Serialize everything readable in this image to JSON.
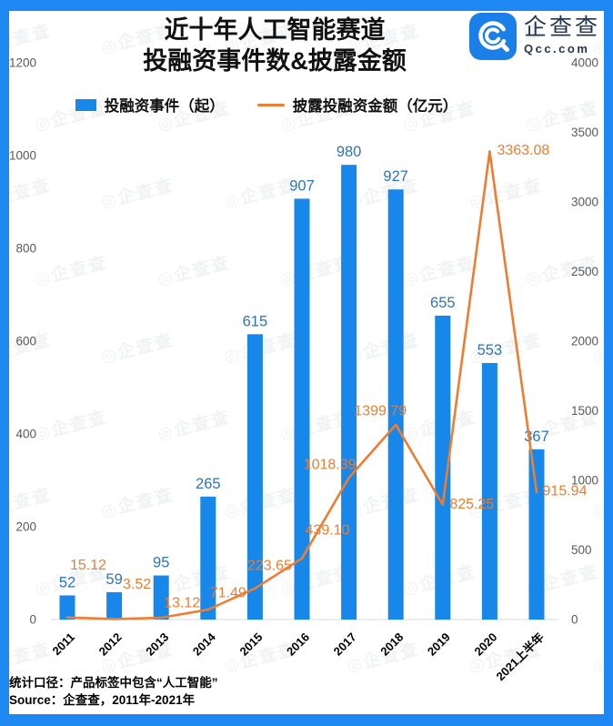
{
  "header": {
    "title_line1": "近十年人工智能赛道",
    "title_line2": "投融资事件数&披露金额"
  },
  "logo": {
    "name": "企查查",
    "domain": "Qcc.com"
  },
  "legend": {
    "bars": "投融资事件（起）",
    "line": "披露投融资金额（亿元）"
  },
  "footer": {
    "line1": "统计口径：产品标签中包含“人工智能”",
    "line2": "Source：企查查，2011年-2021年"
  },
  "watermark_text": "企查查",
  "colors": {
    "frame_blue": "#1e88f2",
    "bar_blue": "#1787e9",
    "line_orange": "#ED7D31",
    "bar_label_blue": "#2E75B6",
    "axis_text_gray": "#595959",
    "axis_line_gray": "#d9d9d9",
    "logo_navy": "#25364d"
  },
  "chart_data": {
    "type": "bar",
    "subtype": "combo-bar-line-dual-axis",
    "title": "近十年人工智能赛道投融资事件数&披露金额",
    "categories": [
      "2011",
      "2012",
      "2013",
      "2014",
      "2015",
      "2016",
      "2017",
      "2018",
      "2019",
      "2020",
      "2021上半年"
    ],
    "series": [
      {
        "name": "投融资事件（起）",
        "type": "bar",
        "y_axis": "left",
        "color": "#1787e9",
        "values": [
          52,
          59,
          95,
          265,
          615,
          907,
          980,
          927,
          655,
          553,
          367
        ]
      },
      {
        "name": "披露投融资金额（亿元）",
        "type": "line",
        "y_axis": "right",
        "color": "#ED7D31",
        "values": [
          15.12,
          3.52,
          13.12,
          71.49,
          223.65,
          439.1,
          1018.39,
          1399.79,
          825.25,
          3363.08,
          915.94
        ],
        "labels": [
          "15.12",
          "3.52",
          "13.12",
          "71.49",
          "223.65",
          "439.10",
          "1018.39",
          "1399.79",
          "825.25",
          "3363.08",
          "915.94"
        ]
      }
    ],
    "left_axis": {
      "min": 0,
      "max": 1200,
      "ticks": [
        0,
        200,
        400,
        600,
        800,
        1000,
        1200
      ]
    },
    "right_axis": {
      "min": 0,
      "max": 4000,
      "ticks": [
        0,
        500,
        1000,
        1500,
        2000,
        2500,
        3000,
        3500,
        4000
      ]
    },
    "grid": false,
    "legend_position": "top",
    "x_label_rotation": -45
  }
}
